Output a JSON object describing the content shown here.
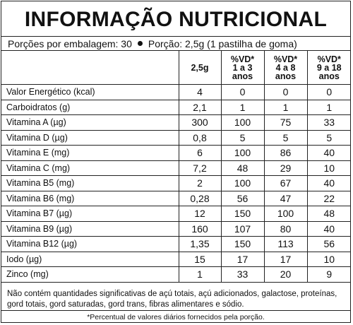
{
  "title": "INFORMAÇÃO NUTRICIONAL",
  "servings": {
    "per_package": "Porções por embalagem: 30",
    "portion": "Porção: 2,5g (1 pastilha de goma)"
  },
  "table": {
    "headers": [
      "",
      "2,5g",
      "%VD*\n1 a 3\nanos",
      "%VD*\n4 a 8\nanos",
      "%VD*\n9 a 18\nanos"
    ],
    "rows": [
      [
        "Valor Energético (kcal)",
        "4",
        "0",
        "0",
        "0"
      ],
      [
        "Carboidratos (g)",
        "2,1",
        "1",
        "1",
        "1"
      ],
      [
        "Vitamina A (µg)",
        "300",
        "100",
        "75",
        "33"
      ],
      [
        "Vitamina D (µg)",
        "0,8",
        "5",
        "5",
        "5"
      ],
      [
        "Vitamina E (mg)",
        "6",
        "100",
        "86",
        "40"
      ],
      [
        "Vitamina C (mg)",
        "7,2",
        "48",
        "29",
        "10"
      ],
      [
        "Vitamina B5 (mg)",
        "2",
        "100",
        "67",
        "40"
      ],
      [
        "Vitamina B6 (mg)",
        "0,28",
        "56",
        "47",
        "22"
      ],
      [
        "Vitamina B7 (µg)",
        "12",
        "150",
        "100",
        "48"
      ],
      [
        "Vitamina B9 (µg)",
        "160",
        "107",
        "80",
        "40"
      ],
      [
        "Vitamina B12 (µg)",
        "1,35",
        "150",
        "113",
        "56"
      ],
      [
        "Iodo (µg)",
        "15",
        "17",
        "17",
        "10"
      ],
      [
        "Zinco (mg)",
        "1",
        "33",
        "20",
        "9"
      ]
    ]
  },
  "footnote": "Não contém quantidades significativas de açú totais, açú adicionados, galactose, proteínas, gord totais, gord saturadas, gord trans, fibras alimentares e sódio.",
  "footnote_vd": "*Percentual de valores diários fornecidos pela porção."
}
